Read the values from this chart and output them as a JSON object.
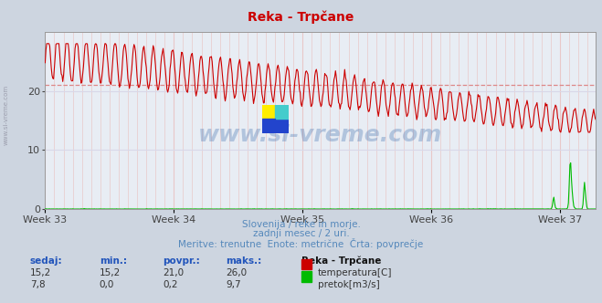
{
  "title": "Reka - Trpčane",
  "bg_color": "#cdd5e0",
  "plot_bg_color": "#e8edf4",
  "vgrid_color": "#e8c8c8",
  "hgrid_color": "#d8d8e8",
  "text_color": "#5588bb",
  "weeks": [
    "Week 33",
    "Week 34",
    "Week 35",
    "Week 36",
    "Week 37"
  ],
  "week_positions": [
    0,
    168,
    336,
    504,
    672
  ],
  "ylim": [
    0,
    30
  ],
  "yticks": [
    0,
    10,
    20
  ],
  "temp_color": "#cc0000",
  "flow_color": "#00bb00",
  "avg_color": "#dd8888",
  "avg_value": 21.0,
  "n_points": 720,
  "subtitle1": "Slovenija / reke in morje.",
  "subtitle2": "zadnji mesec / 2 uri.",
  "subtitle3": "Meritve: trenutne  Enote: metrične  Črta: povprečje",
  "table_headers": [
    "sedaj:",
    "min.:",
    "povpr.:",
    "maks.:"
  ],
  "table_row1": [
    "15,2",
    "15,2",
    "21,0",
    "26,0"
  ],
  "table_row2": [
    "7,8",
    "0,0",
    "0,2",
    "9,7"
  ],
  "label_temp": "temperatura[C]",
  "label_flow": "pretok[m3/s]",
  "station": "Reka - Trpčane",
  "watermark": "www.si-vreme.com"
}
